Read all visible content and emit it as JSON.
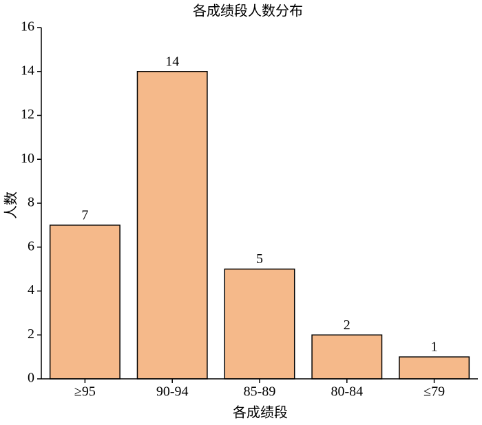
{
  "chart_data": {
    "type": "bar",
    "title": "各成绩段人数分布",
    "x_label": "各成绩段",
    "y_label": "人数",
    "categories": [
      "≥95",
      "90-94",
      "85-89",
      "80-84",
      "≤79"
    ],
    "values": [
      7,
      14,
      5,
      2,
      1
    ],
    "color": "#f5b98a",
    "ylim": [
      0,
      16
    ],
    "yticks": [
      0,
      2,
      4,
      6,
      8,
      10,
      12,
      14,
      16
    ]
  }
}
